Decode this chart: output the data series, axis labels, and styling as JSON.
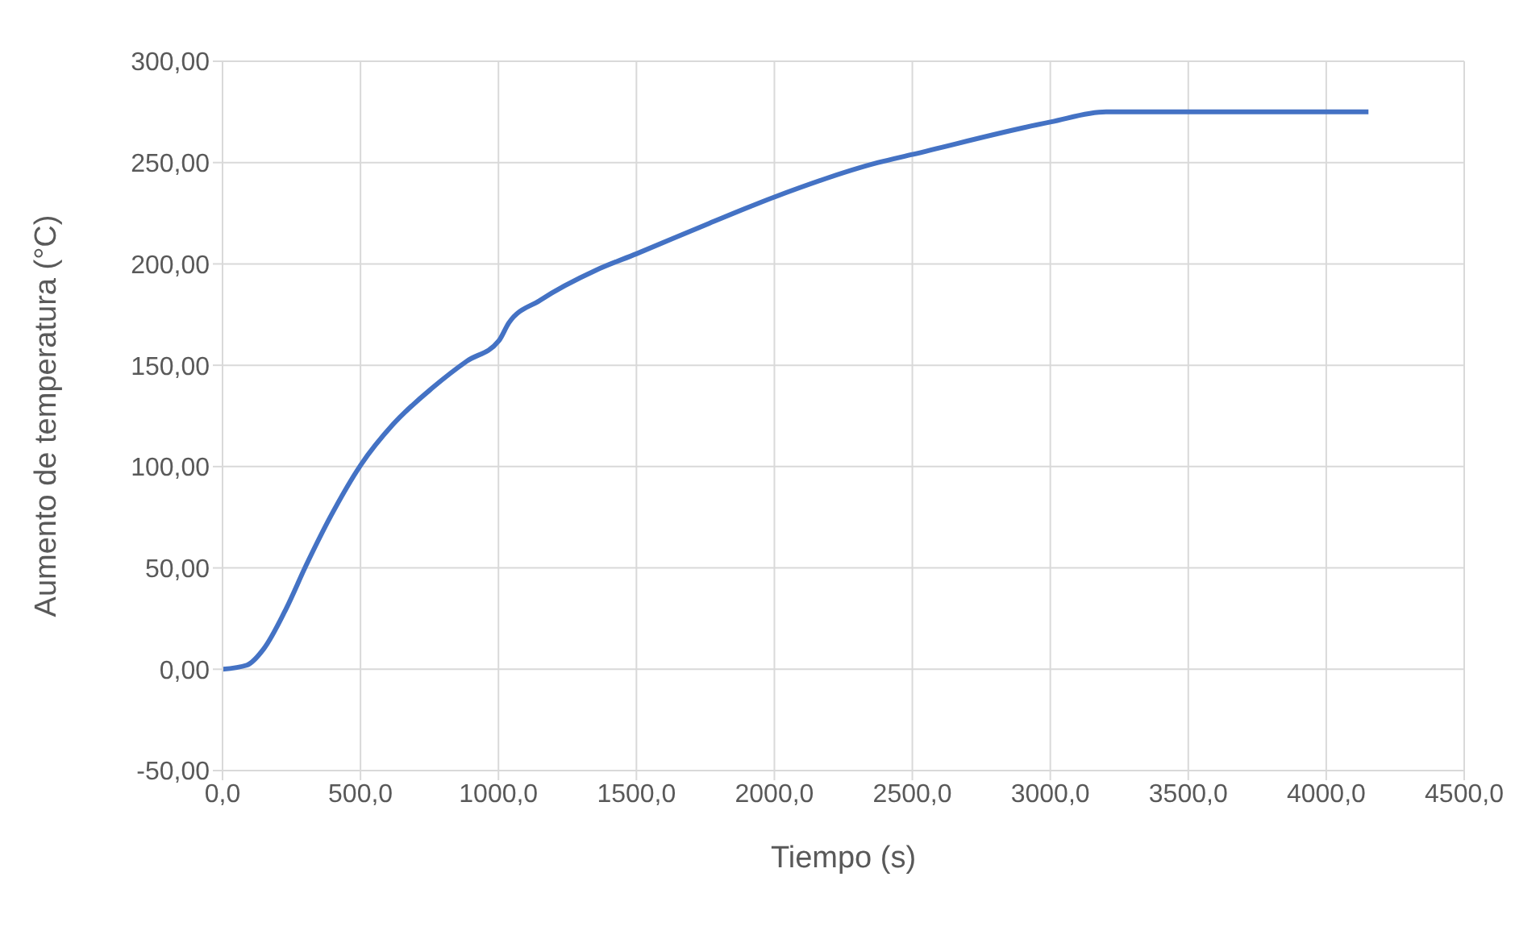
{
  "chart_data": {
    "type": "line",
    "xlabel": "Tiempo (s)",
    "ylabel": "Aumento de temperatura (°C)",
    "xlim": [
      0,
      4500
    ],
    "ylim": [
      -50,
      300
    ],
    "xticks": [
      {
        "value": 0,
        "label": "0,0"
      },
      {
        "value": 500,
        "label": "500,0"
      },
      {
        "value": 1000,
        "label": "1000,0"
      },
      {
        "value": 1500,
        "label": "1500,0"
      },
      {
        "value": 2000,
        "label": "2000,0"
      },
      {
        "value": 2500,
        "label": "2500,0"
      },
      {
        "value": 3000,
        "label": "3000,0"
      },
      {
        "value": 3500,
        "label": "3500,0"
      },
      {
        "value": 4000,
        "label": "4000,0"
      },
      {
        "value": 4500,
        "label": "4500,0"
      }
    ],
    "yticks": [
      {
        "value": -50,
        "label": "-50,00"
      },
      {
        "value": 0,
        "label": "0,00"
      },
      {
        "value": 50,
        "label": "50,00"
      },
      {
        "value": 100,
        "label": "100,00"
      },
      {
        "value": 150,
        "label": "150,00"
      },
      {
        "value": 200,
        "label": "200,00"
      },
      {
        "value": 250,
        "label": "250,00"
      },
      {
        "value": 300,
        "label": "300,00"
      }
    ],
    "grid": true,
    "marker": "none",
    "line_style": "solid",
    "series": [
      {
        "color": "#4472c4",
        "x": [
          0,
          88,
          149,
          231,
          302,
          394,
          502,
          619,
          762,
          885,
          1001,
          1038,
          1150,
          1355,
          1500,
          1763,
          2000,
          2376,
          2500,
          3000,
          3202,
          4153
        ],
        "values": [
          0,
          2,
          10,
          30,
          51,
          76,
          101,
          121,
          139,
          152,
          162,
          171,
          182,
          197,
          205,
          220,
          233,
          250,
          254,
          270,
          275,
          275
        ]
      }
    ]
  }
}
